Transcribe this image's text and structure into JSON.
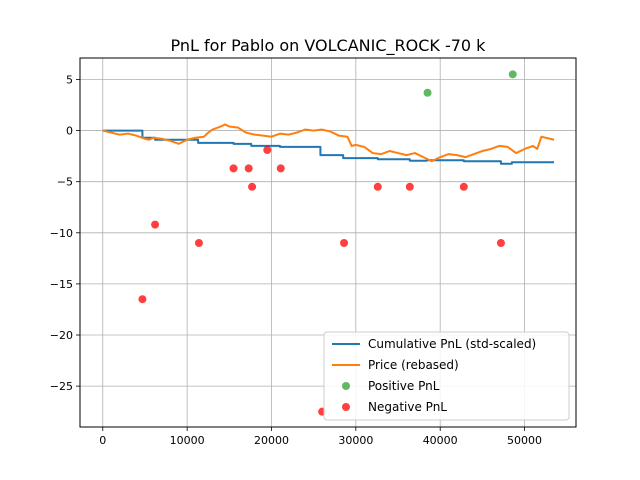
{
  "chart_data": {
    "type": "line",
    "title": "PnL for Pablo on VOLCANIC_ROCK -70 k",
    "xlabel": "",
    "ylabel": "",
    "xlim": [
      -2700,
      56100
    ],
    "ylim": [
      -29,
      7.1
    ],
    "xticks": [
      0,
      10000,
      20000,
      30000,
      40000,
      50000
    ],
    "xtick_labels": [
      "0",
      "10000",
      "20000",
      "30000",
      "40000",
      "50000"
    ],
    "yticks": [
      5,
      0,
      -5,
      -10,
      -15,
      -20,
      -25
    ],
    "ytick_labels": [
      "5",
      "0",
      "−5",
      "−10",
      "−15",
      "−20",
      "−25"
    ],
    "grid": true,
    "legend_position": "lower-right",
    "colors": {
      "cumulative": "#1f77b4",
      "price": "#ff7f0e",
      "positive": "#2ca02c",
      "negative": "#ff0000",
      "grid": "#b0b0b0"
    },
    "series": [
      {
        "name": "Cumulative PnL (std-scaled)",
        "kind": "step",
        "points": [
          [
            0,
            0
          ],
          [
            4700,
            0
          ],
          [
            4700,
            -0.7
          ],
          [
            6200,
            -0.7
          ],
          [
            6200,
            -0.9
          ],
          [
            11300,
            -0.9
          ],
          [
            11300,
            -1.2
          ],
          [
            15500,
            -1.2
          ],
          [
            15500,
            -1.3
          ],
          [
            17600,
            -1.3
          ],
          [
            17600,
            -1.5
          ],
          [
            21000,
            -1.5
          ],
          [
            21000,
            -1.6
          ],
          [
            25800,
            -1.6
          ],
          [
            25800,
            -2.4
          ],
          [
            28500,
            -2.4
          ],
          [
            28500,
            -2.7
          ],
          [
            32600,
            -2.7
          ],
          [
            32600,
            -2.8
          ],
          [
            36400,
            -2.8
          ],
          [
            36400,
            -2.95
          ],
          [
            38400,
            -2.95
          ],
          [
            38400,
            -2.9
          ],
          [
            42800,
            -2.9
          ],
          [
            42800,
            -3.0
          ],
          [
            47200,
            -3.0
          ],
          [
            47200,
            -3.25
          ],
          [
            48500,
            -3.25
          ],
          [
            48500,
            -3.1
          ],
          [
            53500,
            -3.1
          ]
        ]
      },
      {
        "name": "Price (rebased)",
        "kind": "line",
        "points": [
          [
            0,
            0
          ],
          [
            1000,
            -0.2
          ],
          [
            2000,
            -0.4
          ],
          [
            3000,
            -0.3
          ],
          [
            4000,
            -0.5
          ],
          [
            5000,
            -0.8
          ],
          [
            5500,
            -0.9
          ],
          [
            6000,
            -0.7
          ],
          [
            7000,
            -0.8
          ],
          [
            8000,
            -1.0
          ],
          [
            9000,
            -1.3
          ],
          [
            10000,
            -0.9
          ],
          [
            11000,
            -0.7
          ],
          [
            12000,
            -0.6
          ],
          [
            12500,
            -0.2
          ],
          [
            13000,
            0.1
          ],
          [
            14000,
            0.4
          ],
          [
            14500,
            0.6
          ],
          [
            15000,
            0.4
          ],
          [
            16000,
            0.3
          ],
          [
            17000,
            -0.2
          ],
          [
            18000,
            -0.4
          ],
          [
            19000,
            -0.5
          ],
          [
            20000,
            -0.6
          ],
          [
            21000,
            -0.3
          ],
          [
            22000,
            -0.4
          ],
          [
            23000,
            -0.2
          ],
          [
            24000,
            0.1
          ],
          [
            25000,
            0.0
          ],
          [
            26000,
            0.1
          ],
          [
            27000,
            -0.1
          ],
          [
            28000,
            -0.5
          ],
          [
            29000,
            -0.6
          ],
          [
            29500,
            -1.5
          ],
          [
            30000,
            -1.4
          ],
          [
            31000,
            -1.6
          ],
          [
            32000,
            -2.2
          ],
          [
            33000,
            -2.3
          ],
          [
            34000,
            -2.0
          ],
          [
            35000,
            -2.2
          ],
          [
            36000,
            -2.4
          ],
          [
            37000,
            -2.2
          ],
          [
            38000,
            -2.6
          ],
          [
            39000,
            -3.0
          ],
          [
            40000,
            -2.6
          ],
          [
            41000,
            -2.3
          ],
          [
            42000,
            -2.4
          ],
          [
            43000,
            -2.6
          ],
          [
            44000,
            -2.3
          ],
          [
            45000,
            -2.0
          ],
          [
            46000,
            -1.8
          ],
          [
            47000,
            -1.5
          ],
          [
            48000,
            -1.6
          ],
          [
            49000,
            -2.2
          ],
          [
            50000,
            -1.8
          ],
          [
            51000,
            -1.5
          ],
          [
            51500,
            -1.8
          ],
          [
            52000,
            -0.6
          ],
          [
            53000,
            -0.8
          ],
          [
            53500,
            -0.9
          ]
        ]
      }
    ],
    "scatter": [
      {
        "name": "Positive PnL",
        "points": [
          [
            38500,
            3.7
          ],
          [
            48600,
            5.5
          ]
        ]
      },
      {
        "name": "Negative PnL",
        "points": [
          [
            4700,
            -16.5
          ],
          [
            6200,
            -9.2
          ],
          [
            11400,
            -11.0
          ],
          [
            15500,
            -3.7
          ],
          [
            17300,
            -3.7
          ],
          [
            17700,
            -5.5
          ],
          [
            19500,
            -1.9
          ],
          [
            21100,
            -3.7
          ],
          [
            26000,
            -27.5
          ],
          [
            28600,
            -11.0
          ],
          [
            32600,
            -5.5
          ],
          [
            36400,
            -5.5
          ],
          [
            42800,
            -5.5
          ],
          [
            47200,
            -11.0
          ]
        ]
      }
    ]
  }
}
